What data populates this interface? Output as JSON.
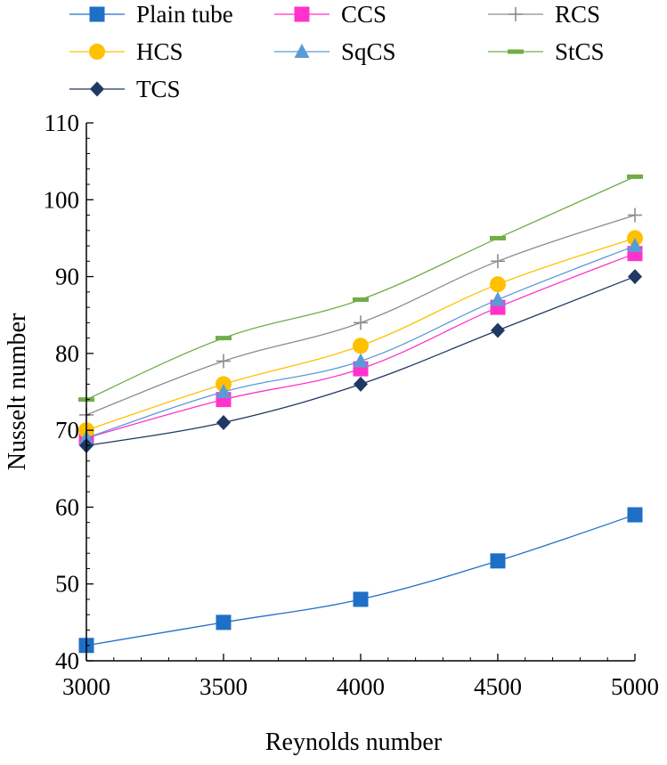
{
  "chart_data": {
    "type": "line",
    "xlabel": "Reynolds number",
    "ylabel": "Nusselt number",
    "x": [
      3000,
      3500,
      4000,
      4500,
      5000
    ],
    "xlim": [
      3000,
      5000
    ],
    "ylim": [
      40,
      110
    ],
    "x_ticks": [
      3000,
      3500,
      4000,
      4500,
      5000
    ],
    "y_ticks": [
      40,
      50,
      60,
      70,
      80,
      90,
      100,
      110
    ],
    "grid": false,
    "legend_position": "top",
    "series": [
      {
        "name": "Plain tube",
        "color": "#1F6FC6",
        "marker": "square",
        "values": [
          42,
          45,
          48,
          53,
          59
        ]
      },
      {
        "name": "CCS",
        "color": "#FF33CC",
        "marker": "square",
        "values": [
          69,
          74,
          78,
          86,
          93
        ]
      },
      {
        "name": "RCS",
        "color": "#8C8C8C",
        "marker": "plus",
        "values": [
          72,
          79,
          84,
          92,
          98
        ]
      },
      {
        "name": "HCS",
        "color": "#FFC000",
        "marker": "circle",
        "values": [
          70,
          76,
          81,
          89,
          95
        ]
      },
      {
        "name": "SqCS",
        "color": "#5B9BD5",
        "marker": "triangle",
        "values": [
          69,
          75,
          79,
          87,
          94
        ]
      },
      {
        "name": "StCS",
        "color": "#70AD47",
        "marker": "dash",
        "values": [
          74,
          82,
          87,
          95,
          103
        ]
      },
      {
        "name": "TCS",
        "color": "#203864",
        "marker": "diamond",
        "values": [
          68,
          71,
          76,
          83,
          90
        ]
      }
    ]
  }
}
